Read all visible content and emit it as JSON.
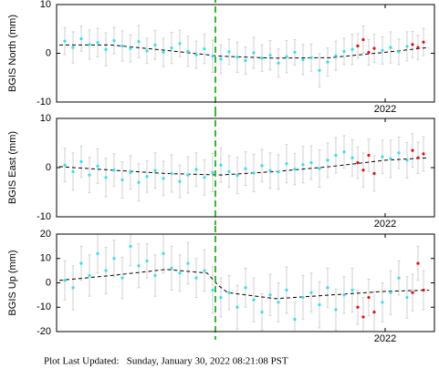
{
  "chart_data": [
    {
      "type": "scatter",
      "ylabel": "BGIS North (mm)",
      "xlim": [
        2019.6,
        2022.36
      ],
      "ylim": [
        -10,
        10
      ],
      "yticks": [
        -10,
        0,
        10
      ],
      "xticks": [
        2022
      ],
      "vline": 2020.76,
      "vline_color": "#33bb33",
      "series": [
        {
          "color": "#33e0f0",
          "x": [
            2019.66,
            2019.72,
            2019.78,
            2019.84,
            2019.9,
            2019.96,
            2020.02,
            2020.08,
            2020.14,
            2020.2,
            2020.26,
            2020.32,
            2020.38,
            2020.44,
            2020.5,
            2020.56,
            2020.62,
            2020.68,
            2020.74,
            2020.8,
            2020.86,
            2020.92,
            2020.98,
            2021.04,
            2021.1,
            2021.16,
            2021.22,
            2021.28,
            2021.34,
            2021.4,
            2021.46,
            2021.52,
            2021.58,
            2021.64,
            2021.7,
            2021.76,
            2021.98,
            2022.04,
            2022.1,
            2022.16
          ],
          "values": [
            2.5,
            1.2,
            3.0,
            1.8,
            2.2,
            0.8,
            2.6,
            1.5,
            1.0,
            2.4,
            0.5,
            1.7,
            0.2,
            1.1,
            2.0,
            0.4,
            -0.3,
            0.9,
            -0.6,
            -1.2,
            0.3,
            -0.8,
            -1.5,
            0.1,
            -1.0,
            -0.4,
            -2.0,
            -0.7,
            0.2,
            -1.3,
            -0.9,
            -3.5,
            -1.8,
            -0.5,
            0.4,
            0.8,
            0.6,
            1.2,
            0.3,
            1.4
          ],
          "errors": [
            2.8,
            3.2,
            2.6,
            3.0,
            2.9,
            3.4,
            2.7,
            3.1,
            2.8,
            3.3,
            2.6,
            3.0,
            2.9,
            3.2,
            2.7,
            3.1,
            2.8,
            3.0,
            3.3,
            2.9,
            2.6,
            3.1,
            2.8,
            3.2,
            2.7,
            3.0,
            2.9,
            3.3,
            2.6,
            3.1,
            2.8,
            3.4,
            2.9,
            3.0,
            2.7,
            3.1,
            2.8,
            3.2,
            2.6,
            3.0
          ]
        },
        {
          "color": "#e01010",
          "x": [
            2021.8,
            2021.84,
            2021.88,
            2021.92,
            2022.2,
            2022.24,
            2022.28
          ],
          "values": [
            1.5,
            2.8,
            0.2,
            1.0,
            1.8,
            1.2,
            2.3
          ],
          "errors": [
            2.5,
            2.8,
            2.6,
            2.9,
            2.7,
            2.5,
            2.8
          ]
        }
      ],
      "trend": {
        "color": "#000000",
        "x": [
          2019.62,
          2020.0,
          2020.4,
          2020.8,
          2021.2,
          2021.6,
          2022.0,
          2022.32
        ],
        "values": [
          1.7,
          1.7,
          0.6,
          -0.6,
          -1.0,
          -0.9,
          0.2,
          1.2
        ]
      }
    },
    {
      "type": "scatter",
      "ylabel": "BGIS East (mm)",
      "xlim": [
        2019.6,
        2022.36
      ],
      "ylim": [
        -10,
        10
      ],
      "yticks": [
        -10,
        0,
        10
      ],
      "xticks": [
        2022
      ],
      "vline": 2020.76,
      "vline_color": "#33bb33",
      "series": [
        {
          "color": "#33e0f0",
          "x": [
            2019.66,
            2019.72,
            2019.78,
            2019.84,
            2019.9,
            2019.96,
            2020.02,
            2020.08,
            2020.14,
            2020.2,
            2020.26,
            2020.32,
            2020.38,
            2020.44,
            2020.5,
            2020.56,
            2020.62,
            2020.68,
            2020.74,
            2020.8,
            2020.86,
            2020.92,
            2020.98,
            2021.04,
            2021.1,
            2021.16,
            2021.22,
            2021.28,
            2021.34,
            2021.4,
            2021.46,
            2021.52,
            2021.58,
            2021.64,
            2021.7,
            2021.76,
            2021.98,
            2022.04,
            2022.1,
            2022.16
          ],
          "values": [
            0.5,
            -0.8,
            1.2,
            -1.5,
            0.3,
            -2.0,
            -0.5,
            -2.5,
            -1.0,
            -3.0,
            -1.8,
            -0.6,
            -2.2,
            -1.2,
            -2.8,
            -1.5,
            -0.4,
            -2.0,
            -1.0,
            0.5,
            -0.8,
            -1.6,
            -0.2,
            -1.1,
            0.4,
            -0.6,
            -0.9,
            0.8,
            -0.3,
            0.6,
            1.0,
            -0.2,
            1.5,
            2.5,
            3.2,
            2.0,
            2.2,
            1.8,
            3.0,
            1.5
          ],
          "errors": [
            3.4,
            3.8,
            3.2,
            3.6,
            3.5,
            3.9,
            3.3,
            3.7,
            3.4,
            3.8,
            3.2,
            3.6,
            3.5,
            3.8,
            3.3,
            3.7,
            3.4,
            3.6,
            3.9,
            3.5,
            3.2,
            3.7,
            3.4,
            3.8,
            3.3,
            3.6,
            3.5,
            3.9,
            3.2,
            3.7,
            3.4,
            3.8,
            3.5,
            3.6,
            3.3,
            3.7,
            3.4,
            3.8,
            3.2,
            3.6
          ]
        },
        {
          "color": "#e01010",
          "x": [
            2021.8,
            2021.84,
            2021.88,
            2021.92,
            2022.2,
            2022.24,
            2022.28
          ],
          "values": [
            1.0,
            -0.5,
            2.5,
            -1.2,
            3.5,
            2.0,
            2.8
          ],
          "errors": [
            3.2,
            3.5,
            3.3,
            3.6,
            3.4,
            3.2,
            3.5
          ]
        }
      ],
      "trend": {
        "color": "#000000",
        "x": [
          2019.62,
          2020.0,
          2020.4,
          2020.8,
          2021.2,
          2021.6,
          2022.0,
          2022.32
        ],
        "values": [
          0.2,
          -0.5,
          -1.2,
          -1.5,
          -0.8,
          0.2,
          1.5,
          2.0
        ]
      }
    },
    {
      "type": "scatter",
      "ylabel": "BGIS Up (mm)",
      "xlim": [
        2019.6,
        2022.36
      ],
      "ylim": [
        -20,
        20
      ],
      "yticks": [
        -20,
        -10,
        0,
        10,
        20
      ],
      "xticks": [
        2022
      ],
      "vline": 2020.76,
      "vline_color": "#33bb33",
      "series": [
        {
          "color": "#33e0f0",
          "x": [
            2019.66,
            2019.72,
            2019.78,
            2019.84,
            2019.9,
            2019.96,
            2020.02,
            2020.08,
            2020.14,
            2020.2,
            2020.26,
            2020.32,
            2020.38,
            2020.44,
            2020.5,
            2020.56,
            2020.62,
            2020.68,
            2020.74,
            2020.8,
            2020.86,
            2020.92,
            2020.98,
            2021.04,
            2021.1,
            2021.16,
            2021.22,
            2021.28,
            2021.34,
            2021.4,
            2021.46,
            2021.52,
            2021.58,
            2021.64,
            2021.7,
            2021.76,
            2021.98,
            2022.04,
            2022.1,
            2022.16
          ],
          "values": [
            1,
            -2,
            8,
            3,
            12,
            5,
            10,
            2,
            15,
            7,
            9,
            3,
            12,
            6,
            4,
            8,
            2,
            5,
            -3,
            -6,
            -4,
            -10,
            -2,
            -7,
            -12,
            -5,
            -8,
            -3,
            -15,
            -6,
            -4,
            -9,
            -2,
            -11,
            -5,
            -3,
            -8,
            -4,
            2,
            -6
          ],
          "errors": [
            8,
            9,
            7,
            8.5,
            8,
            9.5,
            7.5,
            8.5,
            8,
            9,
            7,
            8.5,
            8,
            9,
            7.5,
            8.5,
            8,
            8.5,
            9.5,
            8,
            7,
            9,
            8,
            9,
            7.5,
            8.5,
            8,
            9.5,
            7,
            9,
            8,
            9.5,
            8,
            8.5,
            7.5,
            9,
            8,
            9,
            7,
            8.5
          ]
        },
        {
          "color": "#e01010",
          "x": [
            2021.8,
            2021.84,
            2021.88,
            2021.92,
            2022.2,
            2022.24,
            2022.28
          ],
          "values": [
            -10,
            -14,
            -6,
            -12,
            -4,
            8,
            -3
          ],
          "errors": [
            7,
            8,
            7.5,
            8.5,
            7.5,
            7,
            8
          ]
        }
      ],
      "trend": {
        "color": "#000000",
        "x": [
          2019.62,
          2020.0,
          2020.4,
          2020.7,
          2020.78,
          2020.85,
          2021.2,
          2021.6,
          2022.0,
          2022.32
        ],
        "values": [
          1,
          3,
          5.5,
          4,
          -1,
          -4,
          -6.5,
          -5,
          -3.5,
          -3
        ]
      }
    }
  ],
  "footer": "Plot Last Updated:   Sunday, January 30, 2022 08:21:08 PST"
}
